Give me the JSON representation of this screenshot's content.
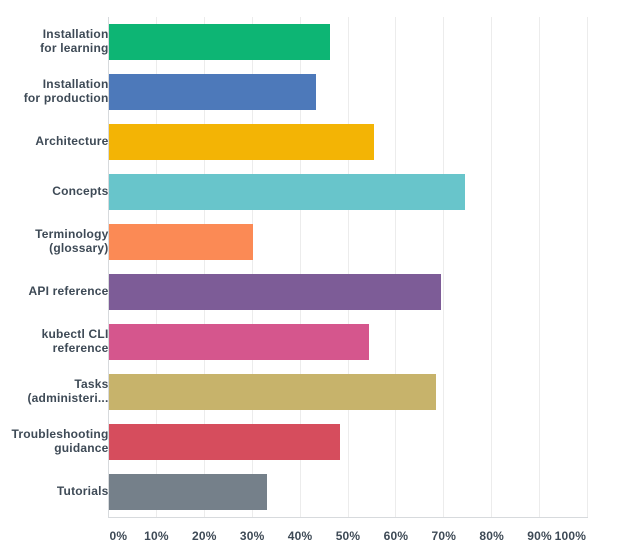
{
  "chart_data": {
    "type": "bar",
    "orientation": "horizontal",
    "title": "",
    "xlabel": "",
    "ylabel": "",
    "categories": [
      "Installation\nfor learning",
      "Installation\nfor production",
      "Architecture",
      "Concepts",
      "Terminology\n(glossary)",
      "API reference",
      "kubectl CLI\nreference",
      "Tasks\n(administeri...",
      "Troubleshooting\nguidance",
      "Tutorials"
    ],
    "values": [
      46.3,
      43.3,
      55.4,
      74.4,
      30.1,
      69.5,
      54.4,
      68.4,
      48.3,
      33.1
    ],
    "unit": "%",
    "bar_colors": [
      "#0db574",
      "#4d79ba",
      "#f3b405",
      "#68c5cb",
      "#fb8a55",
      "#7d5c97",
      "#d5568d",
      "#c7b36b",
      "#d64d5d",
      "#75808a"
    ],
    "x_axis": {
      "ticks": [
        "0%",
        "10%",
        "20%",
        "30%",
        "40%",
        "50%",
        "60%",
        "70%",
        "80%",
        "90%",
        "100%"
      ],
      "min": 0,
      "max": 100,
      "grid": true
    },
    "legend": "none",
    "colors": {
      "label_text": "#3e4a56",
      "gridline": "#ececec",
      "axis_line": "#d7dadd",
      "background": "#ffffff"
    }
  }
}
